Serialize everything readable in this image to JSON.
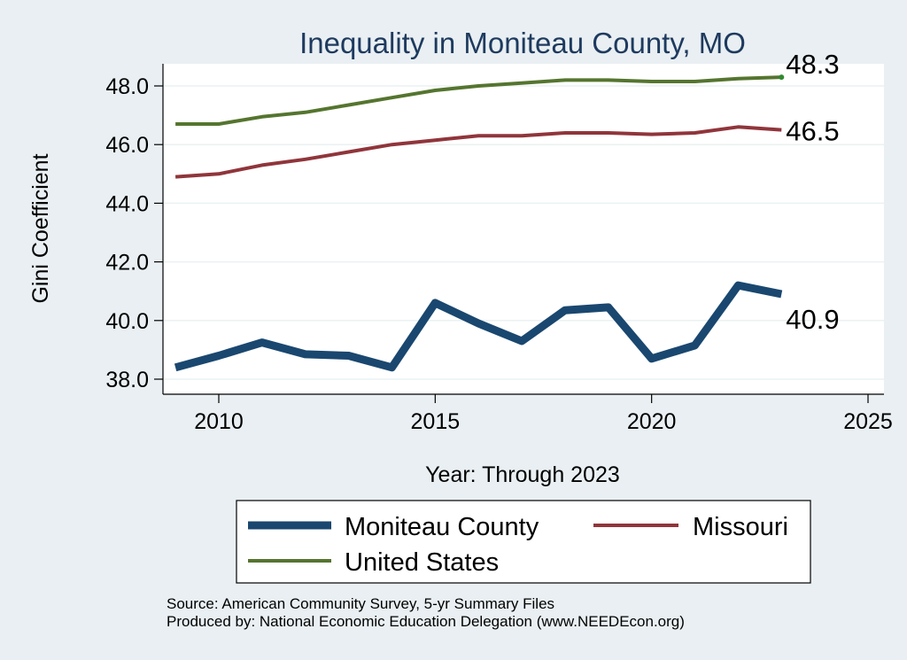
{
  "chart_data": {
    "type": "line",
    "title": "Inequality in Moniteau County, MO",
    "xlabel": "Year: Through 2023",
    "ylabel": "Gini Coefficient",
    "xlim": [
      2009,
      2025
    ],
    "ylim": [
      38.0,
      48.3
    ],
    "x_ticks": [
      "2010",
      "2015",
      "2020",
      "2025"
    ],
    "y_ticks": [
      "38.0",
      "40.0",
      "42.0",
      "44.0",
      "46.0",
      "48.0"
    ],
    "x": [
      2009,
      2010,
      2011,
      2012,
      2013,
      2014,
      2015,
      2016,
      2017,
      2018,
      2019,
      2020,
      2021,
      2022,
      2023
    ],
    "series": [
      {
        "name": "Moniteau County",
        "color": "#1a476f",
        "width": 9,
        "values": [
          38.4,
          38.8,
          39.25,
          38.85,
          38.8,
          38.4,
          40.6,
          39.9,
          39.3,
          40.35,
          40.45,
          38.7,
          39.15,
          41.2,
          40.9
        ],
        "end_label": "40.9"
      },
      {
        "name": "Missouri",
        "color": "#90353b",
        "width": 4,
        "values": [
          44.9,
          45.0,
          45.3,
          45.5,
          45.75,
          46.0,
          46.15,
          46.3,
          46.3,
          46.4,
          46.4,
          46.35,
          46.4,
          46.6,
          46.5
        ],
        "end_label": "46.5"
      },
      {
        "name": "United States",
        "color": "#55752f",
        "width": 4,
        "values": [
          46.7,
          46.7,
          46.95,
          47.1,
          47.35,
          47.6,
          47.85,
          48.0,
          48.1,
          48.2,
          48.2,
          48.15,
          48.15,
          48.25,
          48.3
        ],
        "end_label": "48.3"
      }
    ],
    "legend": {
      "placement": "bottom",
      "items": [
        "Moniteau County",
        "Missouri",
        "United States"
      ]
    },
    "notes": [
      "Source: American Community Survey, 5-yr Summary Files",
      "Produced by: National Economic Education Delegation (www.NEEDEcon.org)"
    ],
    "grid": true
  }
}
